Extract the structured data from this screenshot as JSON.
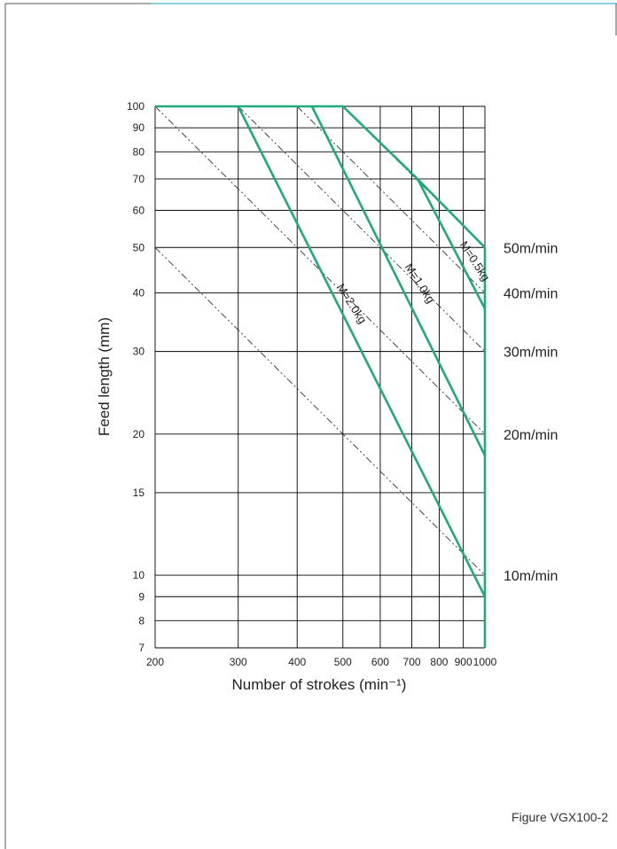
{
  "caption": "Figure VGX100-2",
  "colors": {
    "curve": "#1fa97c",
    "grid": "#000000",
    "speed_line": "#333333",
    "accent_top": "#1aa3b8"
  },
  "chart_data": {
    "type": "line",
    "title": "",
    "xlabel": "Number of strokes (min⁻¹)",
    "ylabel": "Feed length (mm)",
    "xscale": "log",
    "yscale": "log",
    "xlim": [
      200,
      1000
    ],
    "ylim": [
      7,
      100
    ],
    "grid": true,
    "x_ticks": [
      200,
      300,
      400,
      500,
      600,
      700,
      800,
      900,
      1000
    ],
    "y_ticks": [
      7,
      8,
      9,
      10,
      15,
      20,
      30,
      40,
      50,
      60,
      70,
      80,
      90,
      100
    ],
    "series": [
      {
        "name": "M=0.5kg",
        "x": [
          200,
          500,
          720,
          1000
        ],
        "y": [
          100,
          100,
          70,
          50
        ]
      },
      {
        "name": "M=0.5kg",
        "x": [
          720,
          1000
        ],
        "y": [
          70,
          37
        ]
      },
      {
        "name": "M=1.0kg",
        "x": [
          430,
          1000
        ],
        "y": [
          100,
          18
        ]
      },
      {
        "name": "M=2.0kg",
        "x": [
          300,
          1000
        ],
        "y": [
          100,
          9
        ]
      }
    ],
    "speed_lines": [
      {
        "label": "50m/min",
        "value": 50
      },
      {
        "label": "40m/min",
        "value": 40
      },
      {
        "label": "30m/min",
        "value": 30
      },
      {
        "label": "20m/min",
        "value": 20
      },
      {
        "label": "10m/min",
        "value": 10
      }
    ]
  }
}
